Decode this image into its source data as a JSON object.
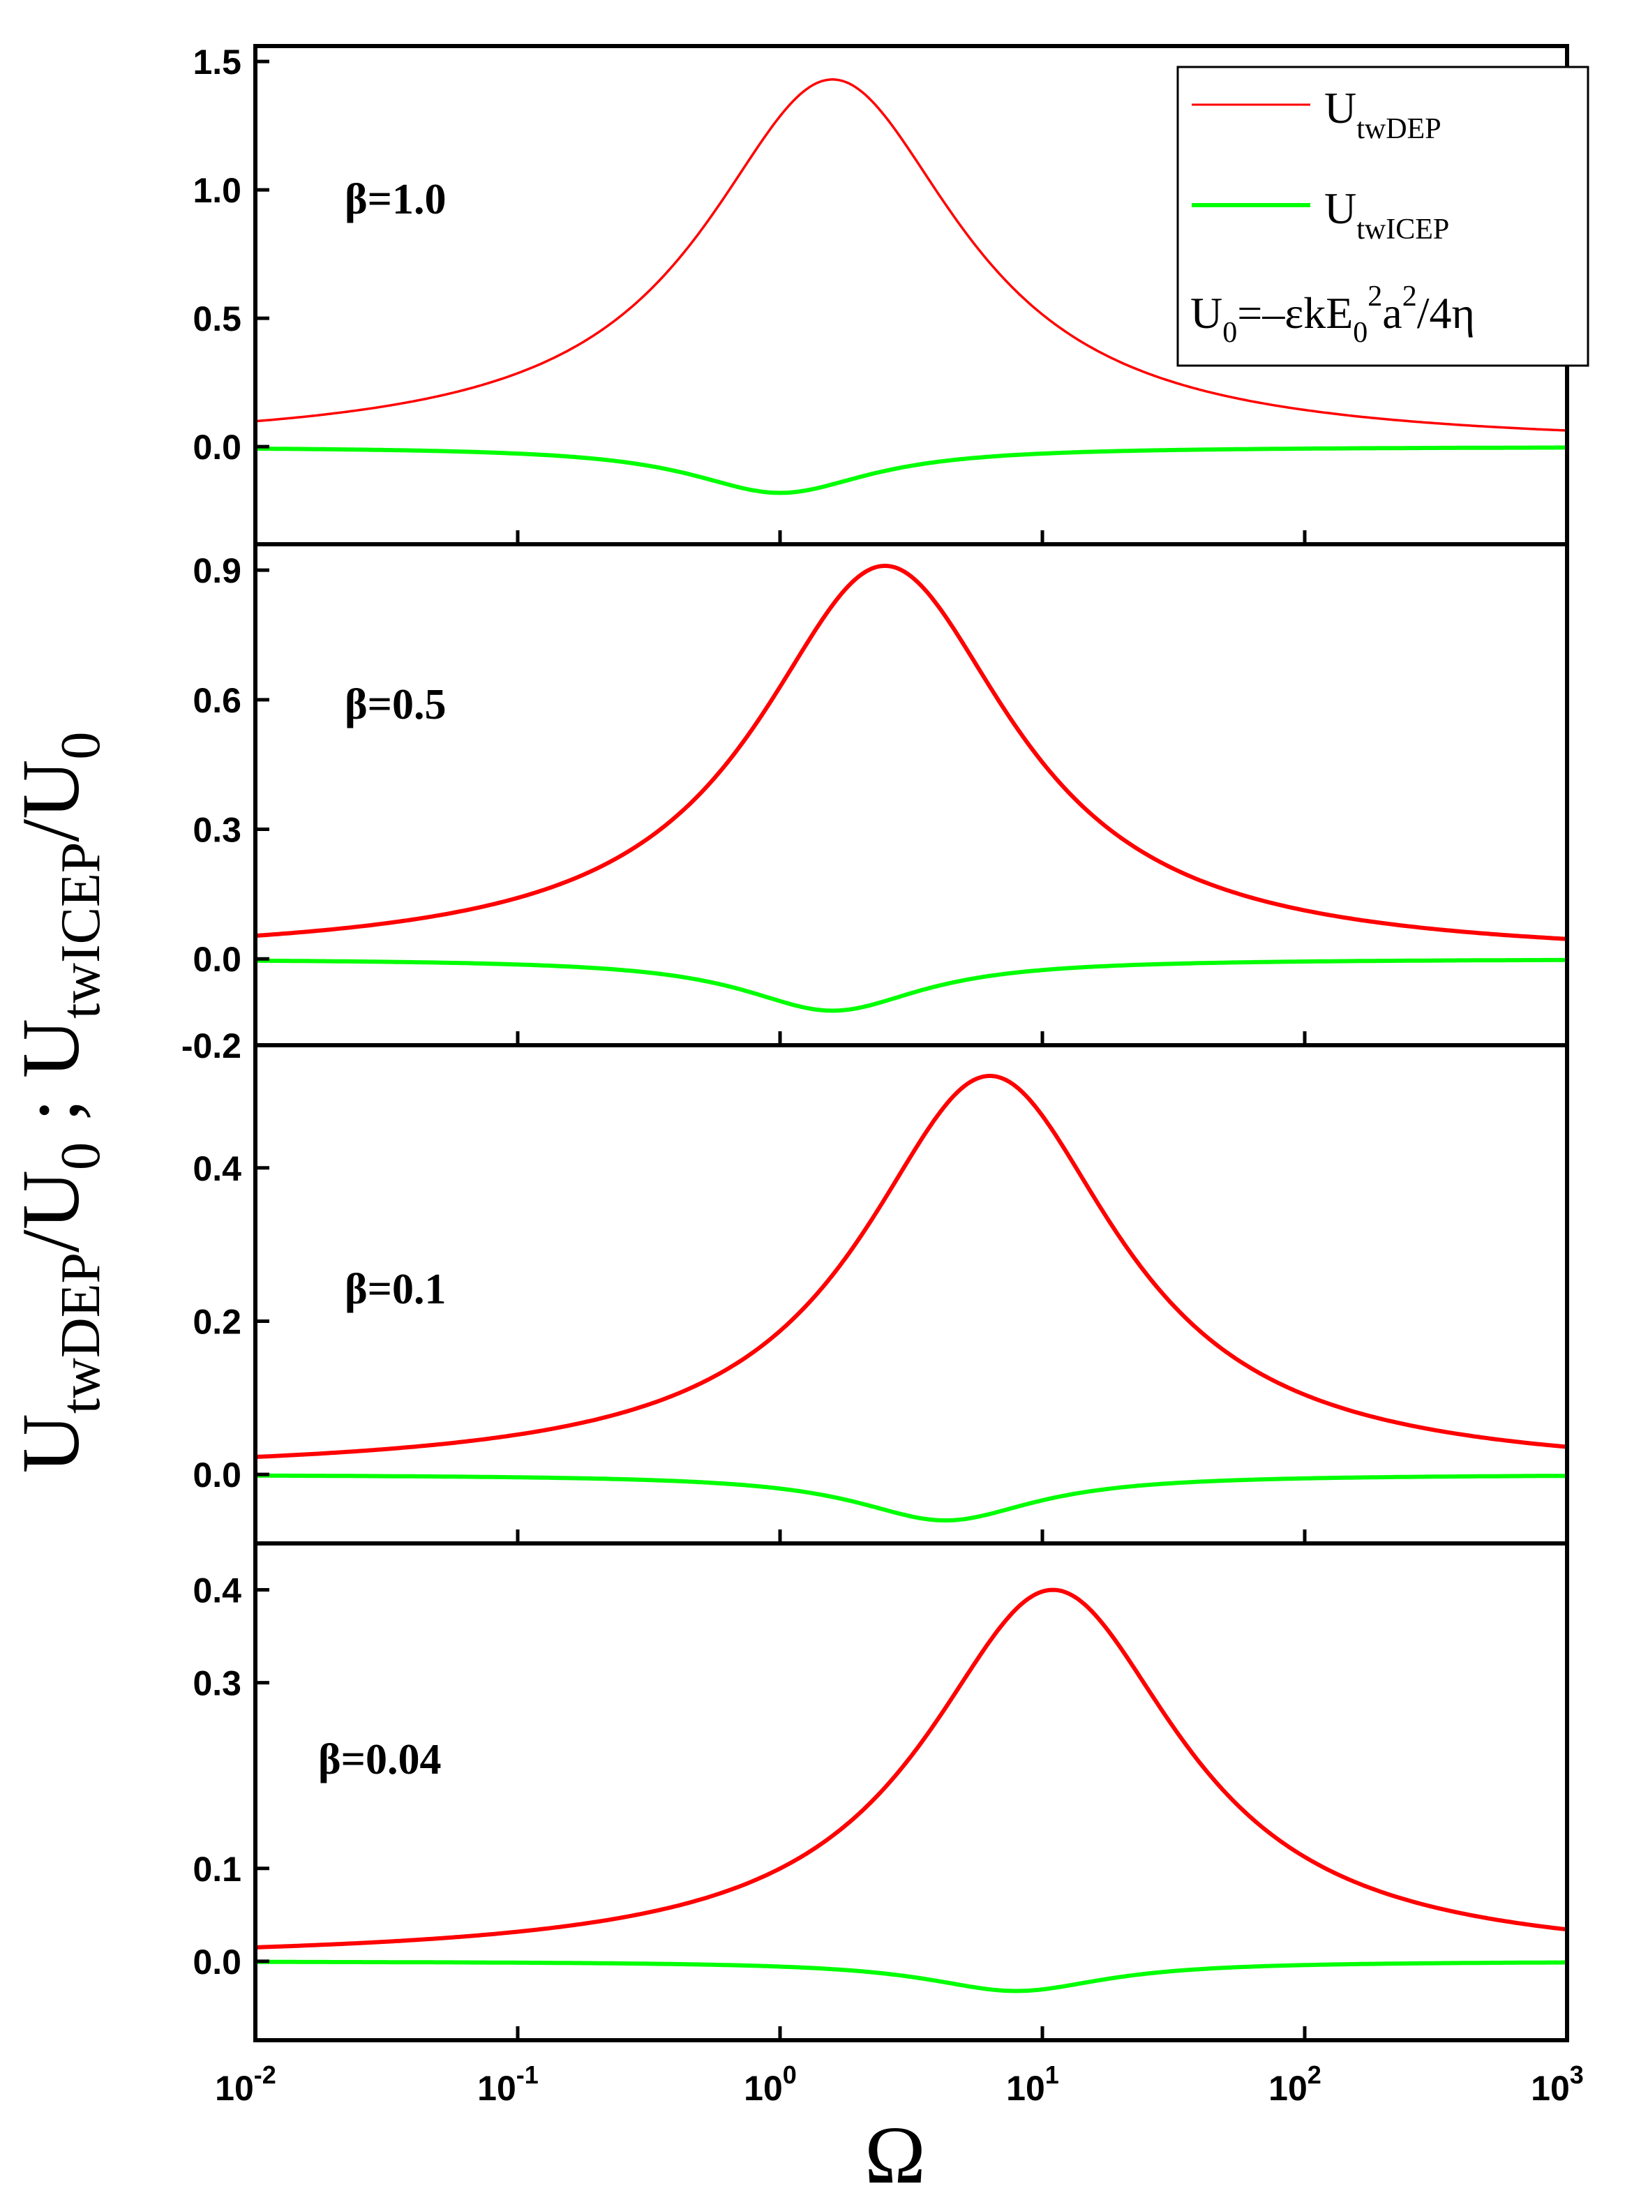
{
  "chart_data": {
    "type": "line",
    "x_scale": "log",
    "xlim": [
      0.01,
      1000
    ],
    "xlabel": "Ω",
    "x_ticks": [
      {
        "base": "10",
        "exp": "-2"
      },
      {
        "base": "10",
        "exp": "-1"
      },
      {
        "base": "10",
        "exp": "0"
      },
      {
        "base": "10",
        "exp": "1"
      },
      {
        "base": "10",
        "exp": "2"
      },
      {
        "base": "10",
        "exp": "3"
      }
    ],
    "ylabel": {
      "part1_main": "U",
      "part1_sub": "twDEP",
      "part1_slash": "/U",
      "part1_sub0": "0",
      "separator": " ; ",
      "part2_main": "U",
      "part2_sub": "twICEP",
      "part2_slash": "/U",
      "part2_sub0": "0"
    },
    "legend": {
      "entries": [
        {
          "main": "U",
          "sub": "twDEP",
          "color": "#ff0000"
        },
        {
          "main": "U",
          "sub": "twICEP",
          "color": "#00ff00"
        }
      ],
      "formula": {
        "U": "U",
        "sub0": "0",
        "eq": "=–εkE",
        "subE": "0",
        "sup2": "2",
        "a": "a",
        "sup2b": "2",
        "rest": "/4η"
      },
      "placement": "top-right of top panel"
    },
    "panels": [
      {
        "label": "β=1.0",
        "ylim": [
          -0.38,
          1.56
        ],
        "y_ticks": [
          "1.5",
          "1.0",
          "0.5",
          "0.0"
        ],
        "y_tick_values": [
          1.5,
          1.0,
          0.5,
          0.0
        ],
        "dep_peak": {
          "log_omega": 0.2,
          "value": 1.43,
          "width": 0.6
        },
        "icep_dip": {
          "log_omega": 0.0,
          "value": -0.18,
          "width": 0.42
        }
      },
      {
        "label": "β=0.5",
        "ylim": [
          -0.2,
          0.96
        ],
        "y_ticks": [
          "0.9",
          "0.6",
          "0.3",
          "0.0",
          "-0.2"
        ],
        "y_tick_values": [
          0.9,
          0.6,
          0.3,
          0.0,
          -0.2
        ],
        "dep_peak": {
          "log_omega": 0.4,
          "value": 0.91,
          "width": 0.6
        },
        "icep_dip": {
          "log_omega": 0.2,
          "value": -0.12,
          "width": 0.42
        }
      },
      {
        "label": "β=0.1",
        "ylim": [
          -0.09,
          0.56
        ],
        "y_ticks": [
          "0.4",
          "0.2",
          "0.0"
        ],
        "y_tick_values": [
          0.4,
          0.2,
          0.0
        ],
        "dep_peak": {
          "log_omega": 0.8,
          "value": 0.52,
          "width": 0.6
        },
        "icep_dip": {
          "log_omega": 0.63,
          "value": -0.06,
          "width": 0.42
        }
      },
      {
        "label": "β=0.04",
        "ylim": [
          -0.085,
          0.45
        ],
        "y_ticks": [
          "0.4",
          "0.3",
          "0.1",
          "0.0"
        ],
        "y_tick_values": [
          0.4,
          0.3,
          0.1,
          0.0
        ],
        "dep_peak": {
          "log_omega": 1.04,
          "value": 0.4,
          "width": 0.6
        },
        "icep_dip": {
          "log_omega": 0.9,
          "value": -0.032,
          "width": 0.42
        }
      }
    ],
    "series_colors": {
      "dep": "#ff0000",
      "icep": "#00ff00"
    }
  }
}
